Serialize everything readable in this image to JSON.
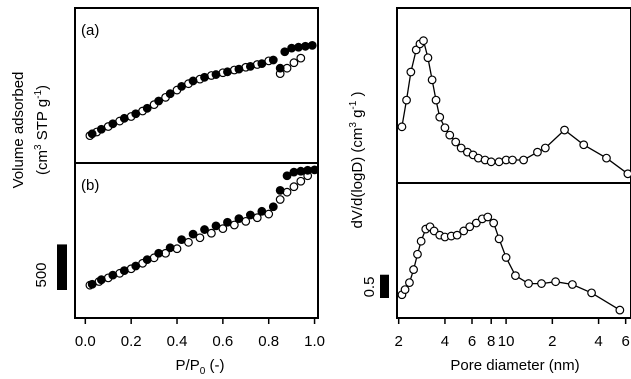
{
  "left_ylabel": {
    "line1": "Volume adsorbed",
    "open": "(cm",
    "sup1": "3",
    "mid": " STP g",
    "sup2": "-1",
    "close": ")"
  },
  "left_xlabel": {
    "main": "P/P",
    "sub": "0",
    "rest": " (-)"
  },
  "right_ylabel": {
    "main": "dV/d(logD) (cm",
    "sup1": "3",
    "mid": " g",
    "sup2": "-1",
    "close": " )"
  },
  "right_xlabel": "Pore diameter (nm)",
  "left_scale_bar": {
    "value": 500,
    "label": "500"
  },
  "right_scale_bar": {
    "value": 0.5,
    "label": "0.5"
  },
  "chart_data": [
    {
      "type": "scatter",
      "label": "(a)",
      "xlim": [
        -0.045,
        1.015
      ],
      "ylim": [
        0,
        1700
      ],
      "series": [
        {
          "marker_fill": "#ffffff",
          "color": "#000000",
          "x": [
            0.02,
            0.05,
            0.1,
            0.15,
            0.2,
            0.25,
            0.3,
            0.35,
            0.4,
            0.45,
            0.5,
            0.55,
            0.6,
            0.65,
            0.7,
            0.75,
            0.8,
            0.85,
            0.88,
            0.91,
            0.94
          ],
          "values": [
            300,
            340,
            400,
            460,
            510,
            570,
            640,
            720,
            800,
            870,
            920,
            960,
            990,
            1020,
            1050,
            1080,
            1120,
            980,
            1040,
            1100,
            1150
          ]
        },
        {
          "marker_fill": "#000000",
          "color": "#000000",
          "x": [
            0.03,
            0.07,
            0.12,
            0.17,
            0.22,
            0.27,
            0.32,
            0.37,
            0.42,
            0.47,
            0.52,
            0.57,
            0.62,
            0.67,
            0.72,
            0.77,
            0.82,
            0.85,
            0.87,
            0.9,
            0.93,
            0.96,
            0.99
          ],
          "values": [
            320,
            370,
            430,
            490,
            540,
            600,
            680,
            760,
            840,
            900,
            940,
            970,
            1000,
            1030,
            1060,
            1090,
            1130,
            1040,
            1220,
            1260,
            1270,
            1280,
            1290
          ]
        }
      ]
    },
    {
      "type": "scatter",
      "label": "(b)",
      "xlim": [
        -0.045,
        1.015
      ],
      "ylim": [
        0,
        1700
      ],
      "xticks": [
        {
          "value": 0,
          "label": "0.0"
        },
        {
          "value": 0.2,
          "label": "0.2"
        },
        {
          "value": 0.4,
          "label": "0.4"
        },
        {
          "value": 0.6,
          "label": "0.6"
        },
        {
          "value": 0.8,
          "label": "0.8"
        },
        {
          "value": 1,
          "label": "1.0"
        }
      ],
      "series": [
        {
          "marker_fill": "#ffffff",
          "color": "#000000",
          "x": [
            0.02,
            0.06,
            0.1,
            0.15,
            0.2,
            0.25,
            0.3,
            0.35,
            0.4,
            0.45,
            0.5,
            0.55,
            0.6,
            0.65,
            0.7,
            0.75,
            0.8,
            0.85,
            0.88,
            0.91,
            0.94,
            0.97
          ],
          "values": [
            360,
            400,
            440,
            490,
            540,
            600,
            660,
            710,
            760,
            830,
            880,
            930,
            980,
            1020,
            1060,
            1100,
            1140,
            1300,
            1380,
            1440,
            1500,
            1560
          ]
        },
        {
          "marker_fill": "#000000",
          "color": "#000000",
          "x": [
            0.03,
            0.07,
            0.12,
            0.17,
            0.22,
            0.27,
            0.32,
            0.37,
            0.42,
            0.47,
            0.52,
            0.57,
            0.62,
            0.67,
            0.72,
            0.77,
            0.82,
            0.85,
            0.88,
            0.91,
            0.94,
            0.97,
            1.0
          ],
          "values": [
            370,
            420,
            470,
            520,
            570,
            640,
            710,
            770,
            860,
            920,
            970,
            1010,
            1050,
            1090,
            1130,
            1170,
            1220,
            1400,
            1560,
            1600,
            1610,
            1620,
            1625
          ]
        }
      ]
    },
    {
      "type": "line",
      "log_x": true,
      "xlim": [
        1.95,
        65
      ],
      "ylim": [
        0,
        3.8
      ],
      "series": [
        {
          "marker_fill": "#ffffff",
          "color": "#000000",
          "x": [
            2.1,
            2.25,
            2.4,
            2.6,
            2.75,
            2.9,
            3.1,
            3.3,
            3.5,
            3.7,
            4.0,
            4.3,
            4.7,
            5.1,
            5.6,
            6.1,
            6.6,
            7.3,
            8,
            9,
            10,
            11,
            13,
            16,
            18,
            24,
            32,
            45,
            62
          ],
          "values": [
            1.22,
            1.8,
            2.41,
            2.89,
            3.02,
            3.09,
            2.72,
            2.24,
            1.8,
            1.43,
            1.2,
            1.04,
            0.89,
            0.76,
            0.67,
            0.61,
            0.54,
            0.5,
            0.46,
            0.46,
            0.5,
            0.5,
            0.5,
            0.67,
            0.76,
            1.15,
            0.83,
            0.54,
            0.2
          ]
        }
      ]
    },
    {
      "type": "line",
      "log_x": true,
      "xlim": [
        1.95,
        65
      ],
      "ylim": [
        0,
        2.9
      ],
      "xticks": [
        2,
        4,
        6,
        8,
        10,
        {
          "value": 20,
          "label": "2"
        },
        {
          "value": 40,
          "label": "4"
        },
        {
          "value": 60,
          "label": "6"
        }
      ],
      "series": [
        {
          "marker_fill": "#ffffff",
          "color": "#000000",
          "x": [
            2.1,
            2.2,
            2.35,
            2.5,
            2.65,
            2.8,
            3.0,
            3.2,
            3.4,
            3.7,
            4.0,
            4.4,
            4.8,
            5.3,
            5.8,
            6.4,
            7.0,
            7.6,
            8.3,
            9,
            10,
            11.5,
            14,
            17,
            21,
            27,
            36,
            55
          ],
          "values": [
            0.5,
            0.61,
            0.76,
            1.04,
            1.37,
            1.65,
            1.91,
            1.96,
            1.87,
            1.78,
            1.74,
            1.76,
            1.78,
            1.87,
            1.96,
            2.04,
            2.13,
            2.17,
            2.04,
            1.7,
            1.3,
            0.91,
            0.74,
            0.74,
            0.78,
            0.72,
            0.54,
            0.17
          ]
        }
      ]
    }
  ]
}
